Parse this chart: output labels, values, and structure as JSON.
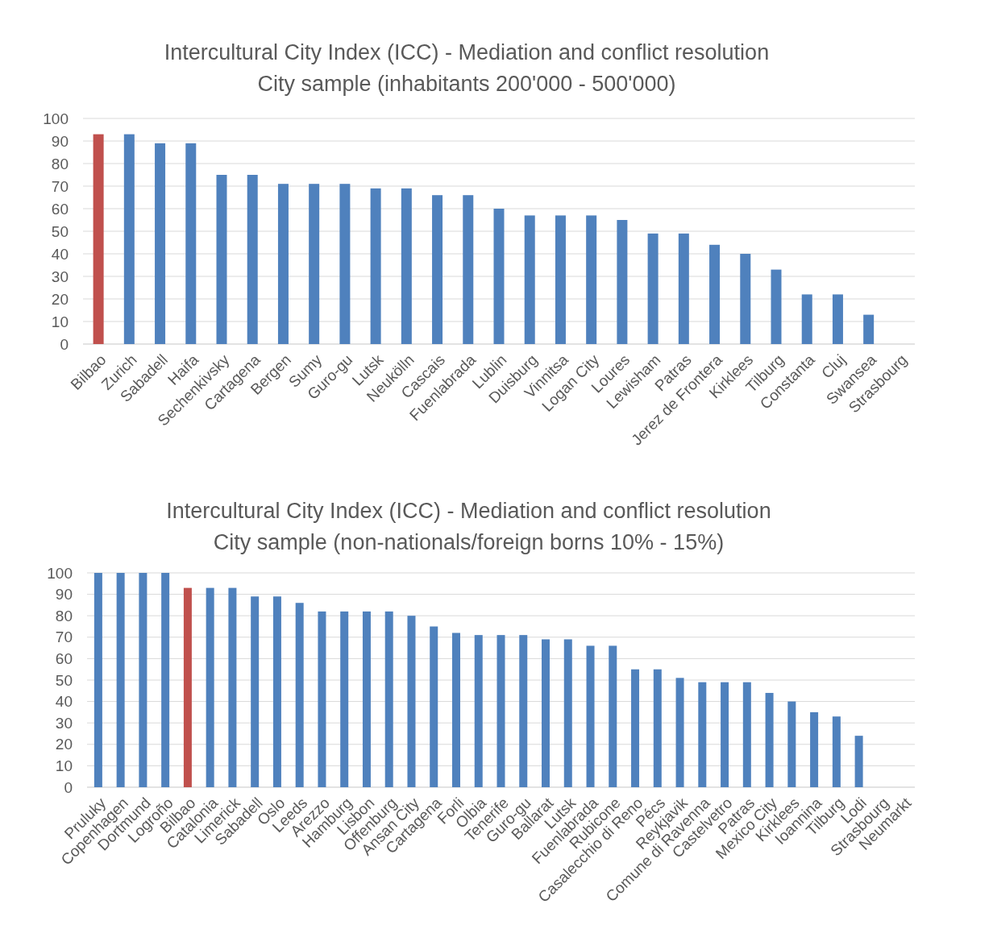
{
  "chart_data": [
    {
      "type": "bar",
      "title": "Intercultural City Index (ICC) - Mediation and conflict resolution",
      "subtitle": "City sample (inhabitants 200'000 - 500'000)",
      "categories": [
        "Bilbao",
        "Zurich",
        "Sabadell",
        "Haifa",
        "Sechenkivsky",
        "Cartagena",
        "Bergen",
        "Sumy",
        "Guro-gu",
        "Lutsk",
        "Neukölln",
        "Cascais",
        "Fuenlabrada",
        "Lublin",
        "Duisburg",
        "Vinnitsa",
        "Logan City",
        "Loures",
        "Lewisham",
        "Patras",
        "Jerez de Frontera",
        "Kirklees",
        "Tilburg",
        "Constanta",
        "Cluj",
        "Swansea",
        "Strasbourg"
      ],
      "values": [
        93,
        93,
        89,
        89,
        75,
        75,
        71,
        71,
        71,
        69,
        69,
        66,
        66,
        60,
        57,
        57,
        57,
        55,
        49,
        49,
        44,
        40,
        33,
        22,
        22,
        13,
        0
      ],
      "colors": [
        "#c0504d",
        "#4f81bd",
        "#4f81bd",
        "#4f81bd",
        "#4f81bd",
        "#4f81bd",
        "#4f81bd",
        "#4f81bd",
        "#4f81bd",
        "#4f81bd",
        "#4f81bd",
        "#4f81bd",
        "#4f81bd",
        "#4f81bd",
        "#4f81bd",
        "#4f81bd",
        "#4f81bd",
        "#4f81bd",
        "#4f81bd",
        "#4f81bd",
        "#4f81bd",
        "#4f81bd",
        "#4f81bd",
        "#4f81bd",
        "#4f81bd",
        "#4f81bd",
        "#4f81bd"
      ],
      "ylim": [
        0,
        100
      ],
      "yticks": [
        0,
        10,
        20,
        30,
        40,
        50,
        60,
        70,
        80,
        90,
        100
      ],
      "grid": "y"
    },
    {
      "type": "bar",
      "title": "Intercultural City Index (ICC) - Mediation and conflict resolution",
      "subtitle": "City sample (non-nationals/foreign borns 10% - 15%)",
      "categories": [
        "Pruluky",
        "Copenhagen",
        "Dortmund",
        "Logroño",
        "Bilbao",
        "Catalonia",
        "Limerick",
        "Sabadell",
        "Oslo",
        "Leeds",
        "Arezzo",
        "Hamburg",
        "Lisbon",
        "Offenburg",
        "Ansan City",
        "Cartagena",
        "Forli",
        "Olbia",
        "Tenerife",
        "Guro-gu",
        "Ballarat",
        "Lutsk",
        "Fuenlabrada",
        "Rubicone",
        "Casalecchio di Reno",
        "Pécs",
        "Reykjavik",
        "Comune di Ravenna",
        "Castelvetro",
        "Patras",
        "Mexico City",
        "Kirklees",
        "Ioannina",
        "Tilburg",
        "Lodi",
        "Strasbourg",
        "Neumarkt"
      ],
      "values": [
        100,
        100,
        100,
        100,
        93,
        93,
        93,
        89,
        89,
        86,
        82,
        82,
        82,
        82,
        80,
        75,
        72,
        71,
        71,
        71,
        69,
        69,
        66,
        66,
        55,
        55,
        51,
        49,
        49,
        49,
        44,
        40,
        35,
        33,
        24,
        0,
        0
      ],
      "colors": [
        "#4f81bd",
        "#4f81bd",
        "#4f81bd",
        "#4f81bd",
        "#c0504d",
        "#4f81bd",
        "#4f81bd",
        "#4f81bd",
        "#4f81bd",
        "#4f81bd",
        "#4f81bd",
        "#4f81bd",
        "#4f81bd",
        "#4f81bd",
        "#4f81bd",
        "#4f81bd",
        "#4f81bd",
        "#4f81bd",
        "#4f81bd",
        "#4f81bd",
        "#4f81bd",
        "#4f81bd",
        "#4f81bd",
        "#4f81bd",
        "#4f81bd",
        "#4f81bd",
        "#4f81bd",
        "#4f81bd",
        "#4f81bd",
        "#4f81bd",
        "#4f81bd",
        "#4f81bd",
        "#4f81bd",
        "#4f81bd",
        "#4f81bd",
        "#4f81bd",
        "#4f81bd"
      ],
      "ylim": [
        0,
        100
      ],
      "yticks": [
        0,
        10,
        20,
        30,
        40,
        50,
        60,
        70,
        80,
        90,
        100
      ],
      "grid": "y"
    }
  ]
}
